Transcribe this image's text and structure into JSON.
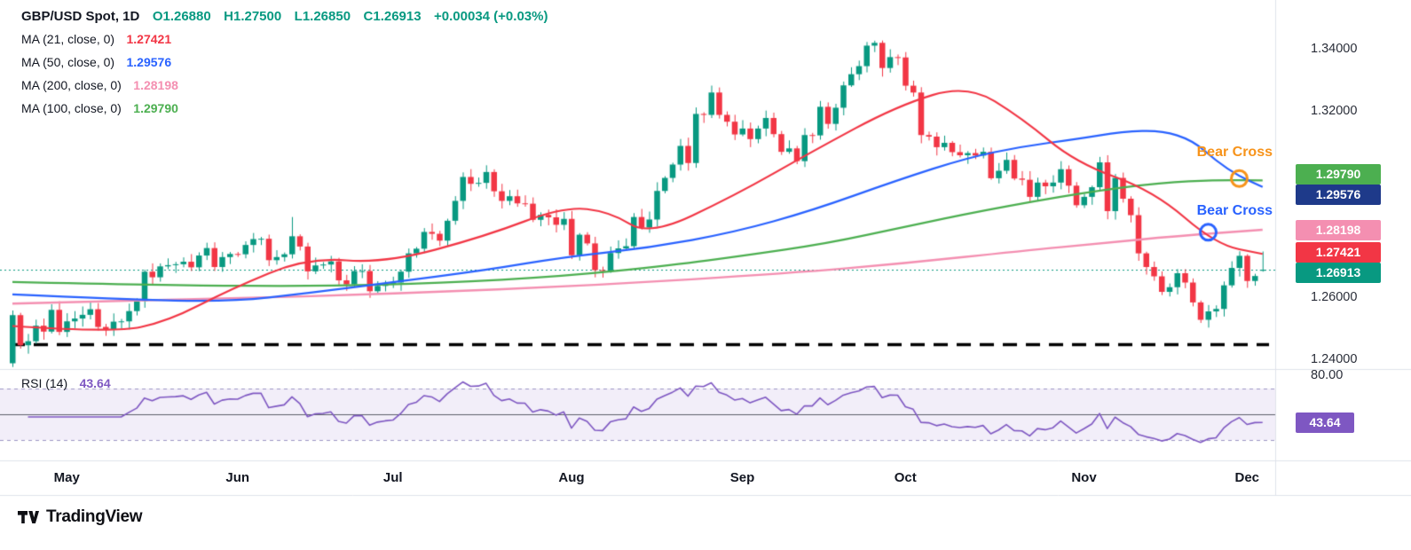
{
  "header": {
    "symbol_title": "GBP/USD Spot, 1D",
    "ohlc_items": [
      "O1.26880",
      "H1.27500",
      "L1.26850",
      "C1.26913",
      "+0.00034 (+0.03%)"
    ],
    "ma_rows": [
      {
        "label": "MA (21, close, 0)",
        "value": "1.27421",
        "color": "#f23645"
      },
      {
        "label": "MA (50, close, 0)",
        "value": "1.29576",
        "color": "#2962ff"
      },
      {
        "label": "MA (200, close, 0)",
        "value": "1.28198",
        "color": "#f48fb1"
      },
      {
        "label": "MA (100, close, 0)",
        "value": "1.29790",
        "color": "#4caf50"
      }
    ]
  },
  "rsi_panel": {
    "label": "RSI (14)",
    "value": "43.64",
    "color": "#7e57c2",
    "badge_text": "43.64",
    "top_axis_label": "80.00",
    "upper_level": 70,
    "middle_level": 50,
    "lower_level": 30
  },
  "price_axis": {
    "labels": [
      {
        "text": "1.34000",
        "price": 1.34
      },
      {
        "text": "1.32000",
        "price": 1.32
      },
      {
        "text": "1.26000",
        "price": 1.26
      },
      {
        "text": "1.24000",
        "price": 1.24
      }
    ],
    "badges": [
      {
        "name": "ma100-price-badge",
        "text": "1.29790",
        "price": 1.2979,
        "bg": "#4caf50"
      },
      {
        "name": "ma50-price-badge",
        "text": "1.29576",
        "price": 1.29576,
        "bg": "#1e3a8a"
      },
      {
        "name": "ma200-price-badge",
        "text": "1.28198",
        "price": 1.28198,
        "bg": "#f48fb1"
      },
      {
        "name": "ma21-price-badge",
        "text": "1.27421",
        "price": 1.27421,
        "bg": "#f23645"
      },
      {
        "name": "last-price-badge",
        "text": "1.26913",
        "price": 1.26913,
        "bg": "#089981"
      }
    ]
  },
  "annotations": {
    "bear_cross_upper": {
      "text": "Bear Cross",
      "color": "#f7931a",
      "circle": {
        "index": 158,
        "price": 1.2985
      }
    },
    "bear_cross_lower": {
      "text": "Bear Cross",
      "color": "#2962ff",
      "circle": {
        "index": 154,
        "price": 1.2812
      }
    },
    "support_dashed_line": {
      "price": 1.245,
      "color": "#000000"
    }
  },
  "branding": {
    "name": "TradingView"
  },
  "chart_data": {
    "type": "candlestick",
    "title": "GBP/USD Spot, 1D",
    "up_color": "#089981",
    "down_color": "#f23645",
    "price_axis_ticks": [
      1.34,
      1.32,
      1.26,
      1.24
    ],
    "ylim": [
      1.2371,
      1.356
    ],
    "months": [
      {
        "label": "May",
        "index": 7
      },
      {
        "label": "Jun",
        "index": 29
      },
      {
        "label": "Jul",
        "index": 49
      },
      {
        "label": "Aug",
        "index": 72
      },
      {
        "label": "Sep",
        "index": 94
      },
      {
        "label": "Oct",
        "index": 115
      },
      {
        "label": "Nov",
        "index": 138
      },
      {
        "label": "Dec",
        "index": 159
      }
    ],
    "closes": [
      1.2545,
      1.2448,
      1.2461,
      1.2511,
      1.2492,
      1.2562,
      1.2491,
      1.2525,
      1.2534,
      1.2546,
      1.2564,
      1.2507,
      1.2498,
      1.2524,
      1.2525,
      1.2558,
      1.259,
      1.2685,
      1.2667,
      1.2702,
      1.2706,
      1.2709,
      1.2717,
      1.2699,
      1.2737,
      1.2761,
      1.27,
      1.2732,
      1.2742,
      1.2741,
      1.2771,
      1.279,
      1.2791,
      1.2722,
      1.2732,
      1.2741,
      1.2799,
      1.2766,
      1.2686,
      1.2705,
      1.2708,
      1.2718,
      1.2657,
      1.2644,
      1.2687,
      1.2687,
      1.2622,
      1.2639,
      1.2646,
      1.265,
      1.2685,
      1.2744,
      1.2759,
      1.2813,
      1.2807,
      1.2785,
      1.2849,
      1.2913,
      1.299,
      1.2968,
      1.2971,
      1.3006,
      1.2944,
      1.2913,
      1.2928,
      1.2905,
      1.2904,
      1.2852,
      1.2868,
      1.286,
      1.2836,
      1.2855,
      1.2738,
      1.2804,
      1.2776,
      1.269,
      1.2687,
      1.2745,
      1.276,
      1.2767,
      1.2861,
      1.2827,
      1.2853,
      1.2945,
      1.2987,
      1.303,
      1.309,
      1.3035,
      1.3193,
      1.319,
      1.3262,
      1.319,
      1.3168,
      1.3127,
      1.3146,
      1.3112,
      1.3146,
      1.318,
      1.3128,
      1.3071,
      1.3082,
      1.3041,
      1.3125,
      1.3124,
      1.3216,
      1.3161,
      1.3213,
      1.3285,
      1.3321,
      1.3347,
      1.3413,
      1.3422,
      1.3341,
      1.3376,
      1.3375,
      1.3284,
      1.3262,
      1.3125,
      1.312,
      1.3086,
      1.31,
      1.307,
      1.306,
      1.3067,
      1.3059,
      1.3071,
      1.2986,
      1.301,
      1.3045,
      1.2985,
      1.2981,
      1.2926,
      1.2972,
      1.296,
      1.2972,
      1.3015,
      1.2962,
      1.2899,
      1.2926,
      1.2957,
      1.3037,
      1.288,
      1.2987,
      1.292,
      1.2867,
      1.2744,
      1.27,
      1.267,
      1.262,
      1.2635,
      1.268,
      1.265,
      1.2586,
      1.253,
      1.2557,
      1.2565,
      1.2641,
      1.2697,
      1.2736,
      1.2655,
      1.2671,
      1.26913
    ],
    "candle_overrides": {
      "0": {
        "o": 1.239,
        "h": 1.256,
        "l": 1.2378
      },
      "36": {
        "h": 1.2861
      },
      "161": {
        "o": 1.2688,
        "h": 1.275,
        "l": 1.2685
      }
    },
    "last_candle": {
      "o": 1.2688,
      "h": 1.275,
      "l": 1.2685,
      "c": 1.26913
    },
    "moving_averages": [
      {
        "name": "MA21",
        "period": 21,
        "color": "#f23645",
        "current": 1.27421,
        "width": 2.2,
        "points": [
          [
            0,
            1.251
          ],
          [
            13,
            1.2488
          ],
          [
            20,
            1.2525
          ],
          [
            28,
            1.2628
          ],
          [
            38,
            1.2731
          ],
          [
            48,
            1.2712
          ],
          [
            61,
            1.28
          ],
          [
            71,
            1.2895
          ],
          [
            77,
            1.2878
          ],
          [
            82,
            1.28
          ],
          [
            93,
            1.293
          ],
          [
            103,
            1.3072
          ],
          [
            114,
            1.322
          ],
          [
            123,
            1.3288
          ],
          [
            130,
            1.318
          ],
          [
            137,
            1.3035
          ],
          [
            147,
            1.2945
          ],
          [
            155,
            1.2772
          ],
          [
            161,
            1.27421
          ]
        ]
      },
      {
        "name": "MA50",
        "period": 50,
        "color": "#2962ff",
        "current": 1.29576,
        "width": 2.2,
        "points": [
          [
            0,
            1.2612
          ],
          [
            14,
            1.2596
          ],
          [
            28,
            1.2588
          ],
          [
            38,
            1.2616
          ],
          [
            48,
            1.2648
          ],
          [
            61,
            1.269
          ],
          [
            71,
            1.2732
          ],
          [
            82,
            1.2762
          ],
          [
            93,
            1.2812
          ],
          [
            103,
            1.2882
          ],
          [
            114,
            1.298
          ],
          [
            123,
            1.3052
          ],
          [
            130,
            1.3088
          ],
          [
            137,
            1.3112
          ],
          [
            143,
            1.3136
          ],
          [
            148,
            1.314
          ],
          [
            152,
            1.3108
          ],
          [
            155,
            1.3042
          ],
          [
            158,
            1.2992
          ],
          [
            161,
            1.29576
          ]
        ]
      },
      {
        "name": "MA100",
        "period": 100,
        "color": "#4caf50",
        "current": 1.2979,
        "width": 2.2,
        "points": [
          [
            0,
            1.2652
          ],
          [
            20,
            1.2641
          ],
          [
            40,
            1.2638
          ],
          [
            55,
            1.2648
          ],
          [
            71,
            1.267
          ],
          [
            85,
            1.2706
          ],
          [
            94,
            1.2736
          ],
          [
            105,
            1.2776
          ],
          [
            115,
            1.283
          ],
          [
            125,
            1.2882
          ],
          [
            138,
            1.294
          ],
          [
            148,
            1.2972
          ],
          [
            155,
            1.298
          ],
          [
            161,
            1.2979
          ]
        ]
      },
      {
        "name": "MA200",
        "period": 200,
        "color": "#f48fb1",
        "current": 1.28198,
        "width": 2.4,
        "points": [
          [
            0,
            1.2582
          ],
          [
            25,
            1.2596
          ],
          [
            50,
            1.2615
          ],
          [
            75,
            1.2641
          ],
          [
            100,
            1.268
          ],
          [
            115,
            1.2712
          ],
          [
            130,
            1.2752
          ],
          [
            140,
            1.2776
          ],
          [
            150,
            1.28
          ],
          [
            161,
            1.28198
          ]
        ]
      }
    ],
    "rsi": {
      "period": 14,
      "current": 43.64,
      "color": "#7e57c2"
    },
    "support_level": 1.245
  }
}
